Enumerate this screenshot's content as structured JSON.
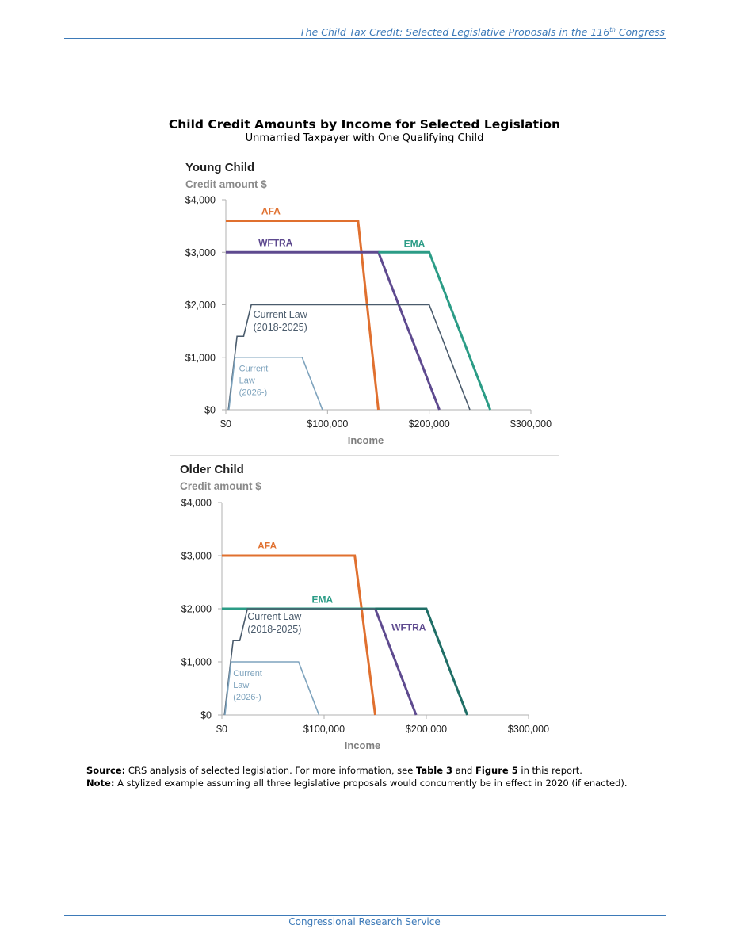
{
  "header": {
    "title_before": "The Child Tax Credit: Selected Legislative Proposals in the 116",
    "title_sup": "th",
    "title_after": " Congress"
  },
  "figure": {
    "title": "Child Credit Amounts by Income for Selected Legislation",
    "subtitle": "Unmarried Taxpayer with One Qualifying Child"
  },
  "chart_data": [
    {
      "type": "line",
      "title": "Young Child",
      "ylabel": "Credit amount $",
      "xlabel": "Income",
      "xlim": [
        0,
        300000
      ],
      "ylim": [
        0,
        4000
      ],
      "xticks": [
        0,
        100000,
        200000,
        300000
      ],
      "xtick_labels": [
        "$0",
        "$100,000",
        "$200,000",
        "$300,000"
      ],
      "yticks": [
        0,
        1000,
        2000,
        3000,
        4000
      ],
      "ytick_labels": [
        "$0",
        "$1,000",
        "$2,000",
        "$3,000",
        "$4,000"
      ],
      "grid": false,
      "series": [
        {
          "name": "AFA",
          "color": "#e0702f",
          "label_lines": [
            "AFA"
          ],
          "label_at": [
            35000,
            3720
          ],
          "label_bold": true,
          "width": 3,
          "x": [
            0,
            130000,
            150000
          ],
          "y": [
            3600,
            3600,
            0
          ]
        },
        {
          "name": "WFTRA",
          "color": "#5e4a8f",
          "label_lines": [
            "WFTRA"
          ],
          "label_at": [
            32000,
            3120
          ],
          "label_bold": true,
          "width": 3,
          "x": [
            0,
            150000,
            210000
          ],
          "y": [
            3000,
            3000,
            0
          ]
        },
        {
          "name": "EMA",
          "color": "#2b9c86",
          "label_lines": [
            "EMA"
          ],
          "label_at": [
            175000,
            3100
          ],
          "label_bold": true,
          "width": 3,
          "x": [
            150000,
            200000,
            260000
          ],
          "y": [
            3000,
            3000,
            0
          ]
        },
        {
          "name": "Current Law (2018-2025)",
          "color": "#4a5b6c",
          "label_lines": [
            "Current Law",
            "(2018-2025)"
          ],
          "label_at": [
            27000,
            1750
          ],
          "label_bold": false,
          "width": 1.6,
          "x": [
            2500,
            11000,
            17500,
            25000,
            200000,
            240000
          ],
          "y": [
            0,
            1400,
            1400,
            2000,
            2000,
            0
          ]
        },
        {
          "name": "Current Law (2026-)",
          "color": "#7ea3bd",
          "label_lines": [
            "Current",
            "Law",
            "(2026-)"
          ],
          "label_at": [
            13000,
            730
          ],
          "label_bold": false,
          "width": 1.6,
          "x": [
            3000,
            9000,
            75000,
            95000
          ],
          "y": [
            0,
            1000,
            1000,
            0
          ]
        }
      ]
    },
    {
      "type": "line",
      "title": "Older Child",
      "ylabel": "Credit amount $",
      "xlabel": "Income",
      "xlim": [
        0,
        300000
      ],
      "ylim": [
        0,
        4000
      ],
      "xticks": [
        0,
        100000,
        200000,
        300000
      ],
      "xtick_labels": [
        "$0",
        "$100,000",
        "$200,000",
        "$300,000"
      ],
      "yticks": [
        0,
        1000,
        2000,
        3000,
        4000
      ],
      "ytick_labels": [
        "$0",
        "$1,000",
        "$2,000",
        "$3,000",
        "$4,000"
      ],
      "grid": false,
      "series": [
        {
          "name": "AFA",
          "color": "#e0702f",
          "label_lines": [
            "AFA"
          ],
          "label_at": [
            35000,
            3130
          ],
          "label_bold": true,
          "width": 3,
          "x": [
            0,
            130000,
            150000
          ],
          "y": [
            3000,
            3000,
            0
          ]
        },
        {
          "name": "EMA",
          "color": "#2b9c86",
          "label_lines": [
            "EMA"
          ],
          "label_at": [
            88000,
            2110
          ],
          "label_bold": true,
          "width": 3,
          "x": [
            0,
            150000
          ],
          "y": [
            2000,
            2000
          ]
        },
        {
          "name": "WFTRA",
          "color": "#5e4a8f",
          "label_lines": [
            "WFTRA"
          ],
          "label_at": [
            166000,
            1590
          ],
          "label_bold": true,
          "width": 3,
          "x": [
            150000,
            190000
          ],
          "y": [
            2000,
            0
          ]
        },
        {
          "name": "Current Law (2018-2025)",
          "color": "#4a5b6c",
          "label_lines": [
            "Current Law",
            "(2018-2025)"
          ],
          "label_at": [
            25000,
            1790
          ],
          "label_bold": false,
          "width": 1.6,
          "x": [
            2500,
            11000,
            17500,
            25000,
            200000,
            240000
          ],
          "y": [
            0,
            1400,
            1400,
            2000,
            2000,
            0
          ]
        },
        {
          "name": "EMA/WFTRA",
          "color": "#1f6e66",
          "label_lines": [],
          "label_at": [
            0,
            0
          ],
          "label_bold": false,
          "width": 3,
          "x": [
            150000,
            200000,
            240000
          ],
          "y": [
            2000,
            2000,
            0
          ]
        },
        {
          "name": "Current Law (2026-)",
          "color": "#7ea3bd",
          "label_lines": [
            "Current",
            "Law",
            "(2026-)"
          ],
          "label_at": [
            11000,
            730
          ],
          "label_bold": false,
          "width": 1.6,
          "x": [
            3000,
            9000,
            75000,
            95000
          ],
          "y": [
            0,
            1000,
            1000,
            0
          ]
        }
      ]
    }
  ],
  "notes": {
    "source_label": "Source:",
    "source_text_1": " CRS analysis of selected legislation. For more information, see ",
    "source_table": "Table 3",
    "source_and": " and ",
    "source_figure": "Figure 5",
    "source_text_2": " in this report.",
    "note_label": "Note:",
    "note_text": " A stylized example assuming all three legislative proposals would concurrently be in effect in 2020 (if enacted)."
  },
  "footer": {
    "text": "Congressional Research Service"
  }
}
